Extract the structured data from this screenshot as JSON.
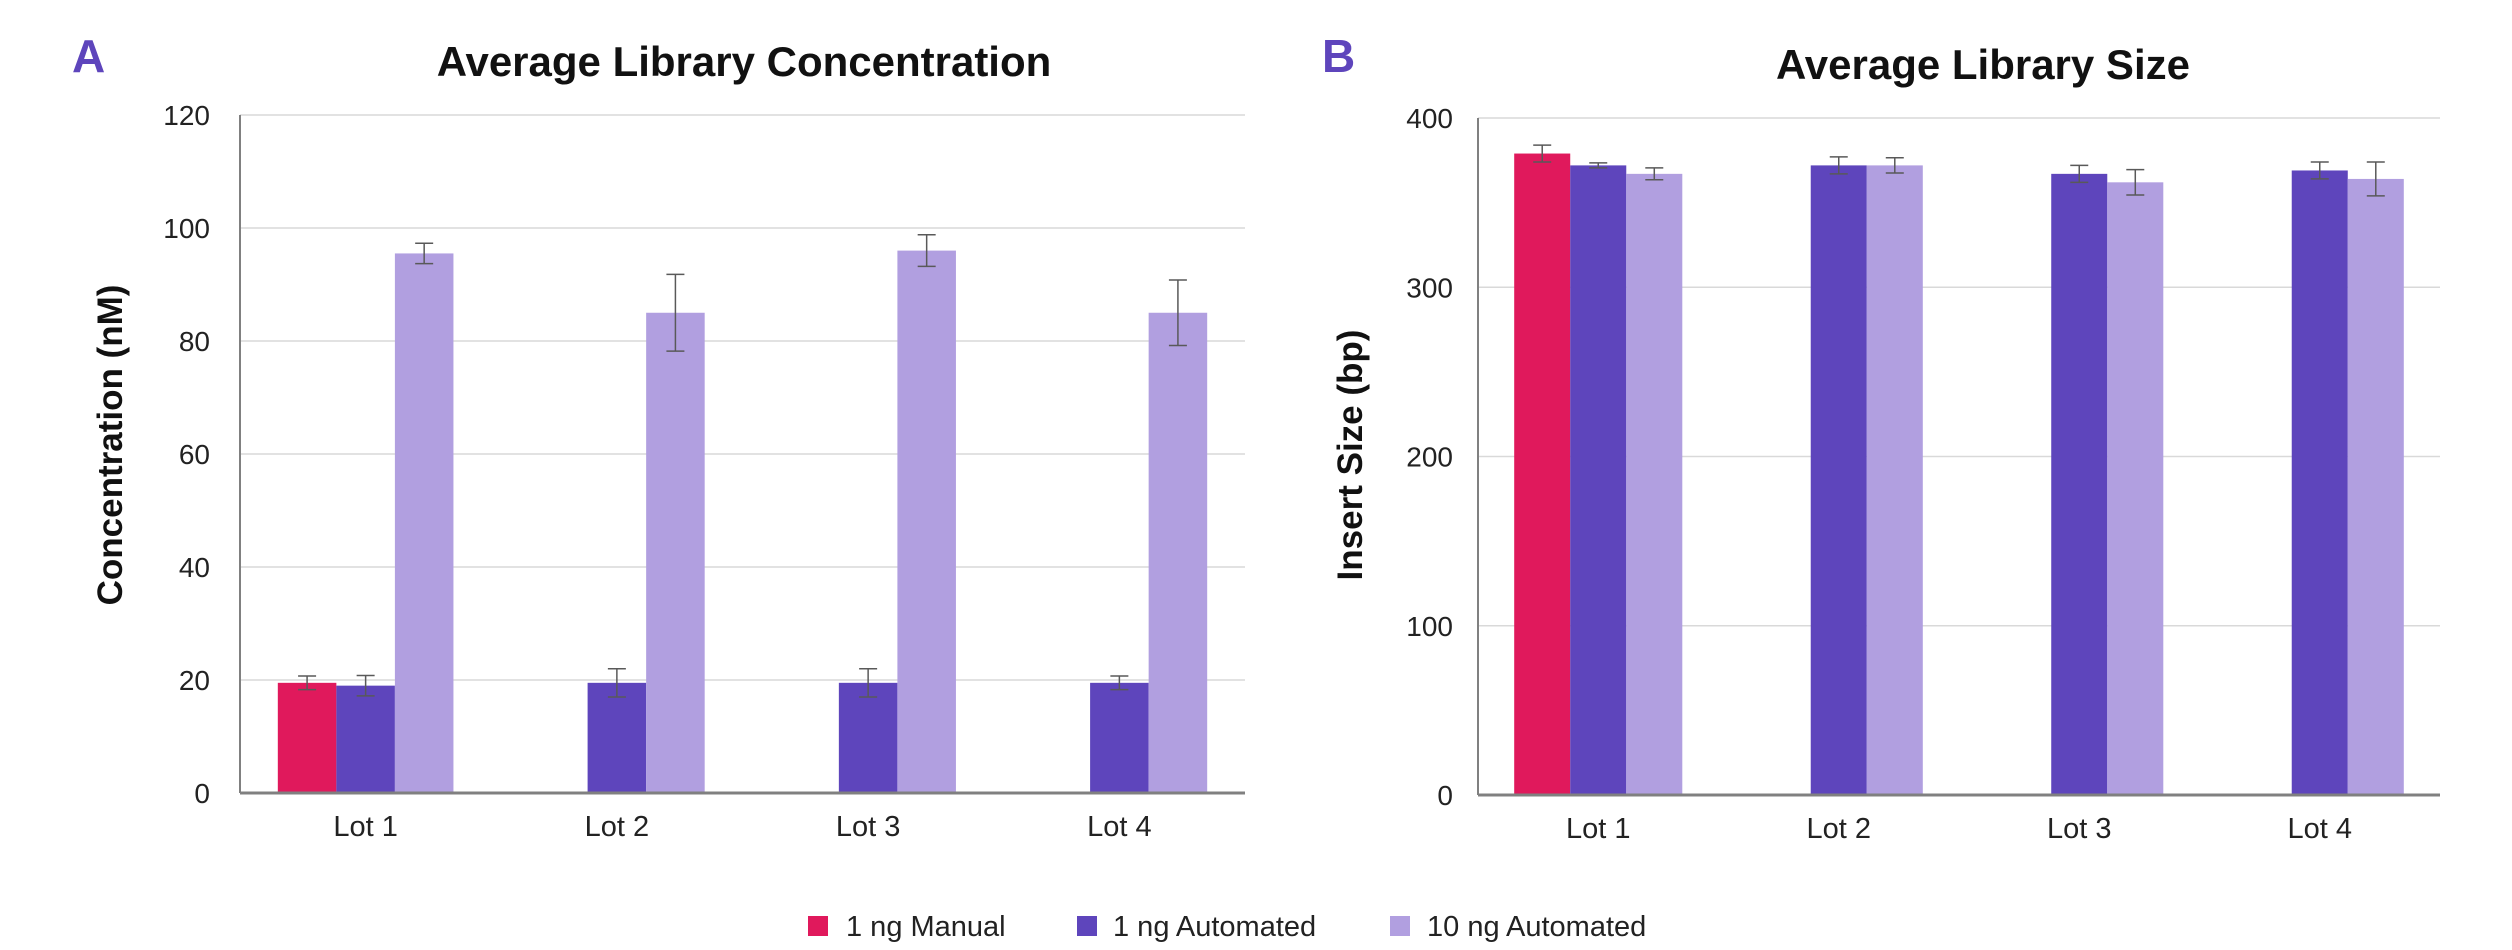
{
  "colors": {
    "manual": "#E0195C",
    "automated_1ng": "#5E45BC",
    "automated_10ng": "#B19FE0",
    "panel_letter": "#5E45BC",
    "grid": "#D9D9D9",
    "axis": "#808080",
    "error_bar": "#595959"
  },
  "legend": {
    "items": [
      {
        "label": "1 ng Manual",
        "color": "#E0195C"
      },
      {
        "label": "1 ng Automated",
        "color": "#5E45BC"
      },
      {
        "label": "10 ng Automated",
        "color": "#B19FE0"
      }
    ],
    "placement": "bottom-center"
  },
  "chart_data": [
    {
      "panel": "A",
      "type": "bar",
      "title": "Average Library Concentration",
      "xlabel": "",
      "ylabel": "Concentration (nM)",
      "ylim": [
        0,
        120
      ],
      "yticks": [
        0,
        20,
        40,
        60,
        80,
        100,
        120
      ],
      "grid": true,
      "categories": [
        "Lot 1",
        "Lot 2",
        "Lot 3",
        "Lot 4"
      ],
      "series": [
        {
          "name": "1 ng Manual",
          "values": [
            19.5,
            null,
            null,
            null
          ],
          "errors": [
            1.2,
            null,
            null,
            null
          ]
        },
        {
          "name": "1 ng Automated",
          "values": [
            19,
            19.5,
            19.5,
            19.5
          ],
          "errors": [
            1.8,
            2.5,
            2.5,
            1.2
          ]
        },
        {
          "name": "10 ng Automated",
          "values": [
            95.5,
            85,
            96,
            85
          ],
          "errors": [
            1.8,
            6.8,
            2.8,
            5.8
          ]
        }
      ]
    },
    {
      "panel": "B",
      "type": "bar",
      "title": "Average Library Size",
      "xlabel": "",
      "ylabel": "Insert Size (bp)",
      "ylim": [
        0,
        400
      ],
      "yticks": [
        0,
        100,
        200,
        300,
        400
      ],
      "grid": true,
      "categories": [
        "Lot 1",
        "Lot 2",
        "Lot 3",
        "Lot 4"
      ],
      "series": [
        {
          "name": "1 ng Manual",
          "values": [
            379,
            null,
            null,
            null
          ],
          "errors": [
            5,
            null,
            null,
            null
          ]
        },
        {
          "name": "1 ng Automated",
          "values": [
            372,
            372,
            367,
            369
          ],
          "errors": [
            1.5,
            5,
            5,
            5
          ]
        },
        {
          "name": "10 ng Automated",
          "values": [
            367,
            372,
            362,
            364
          ],
          "errors": [
            3.5,
            4.5,
            7.5,
            10
          ]
        }
      ]
    }
  ]
}
